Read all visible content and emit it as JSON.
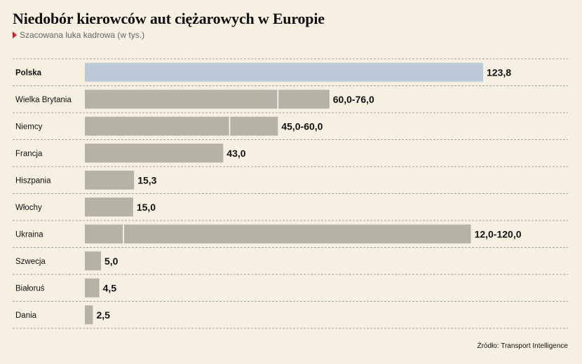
{
  "title": "Niedobór kierowców aut ciężarowych w Europie",
  "subtitle": "Szacowana luka kadrowa (w tys.)",
  "source": "Źródło: Transport Intelligence",
  "colors": {
    "highlight": "#bccad9",
    "bar": "#b5b2a6",
    "background": "#f6f0e2",
    "accent": "#d0202a"
  },
  "chart_data": {
    "type": "bar",
    "orientation": "horizontal",
    "title": "Niedobór kierowców aut ciężarowych w Europie",
    "subtitle": "Szacowana luka kadrowa (w tys.)",
    "xlim": [
      0,
      124
    ],
    "grid": false,
    "rows": [
      {
        "category": "Polska",
        "label": "123,8",
        "min": 123.8,
        "max": 123.8,
        "highlight": true
      },
      {
        "category": "Wielka Brytania",
        "label": "60,0-76,0",
        "min": 60.0,
        "max": 76.0,
        "highlight": false
      },
      {
        "category": "Niemcy",
        "label": "45,0-60,0",
        "min": 45.0,
        "max": 60.0,
        "highlight": false
      },
      {
        "category": "Francja",
        "label": "43,0",
        "min": 43.0,
        "max": 43.0,
        "highlight": false
      },
      {
        "category": "Hiszpania",
        "label": "15,3",
        "min": 15.3,
        "max": 15.3,
        "highlight": false
      },
      {
        "category": "Włochy",
        "label": "15,0",
        "min": 15.0,
        "max": 15.0,
        "highlight": false
      },
      {
        "category": "Ukraina",
        "label": "12,0-120,0",
        "min": 12.0,
        "max": 120.0,
        "highlight": false
      },
      {
        "category": "Szwecja",
        "label": "5,0",
        "min": 5.0,
        "max": 5.0,
        "highlight": false
      },
      {
        "category": "Białoruś",
        "label": "4,5",
        "min": 4.5,
        "max": 4.5,
        "highlight": false
      },
      {
        "category": "Dania",
        "label": "2,5",
        "min": 2.5,
        "max": 2.5,
        "highlight": false
      }
    ]
  }
}
